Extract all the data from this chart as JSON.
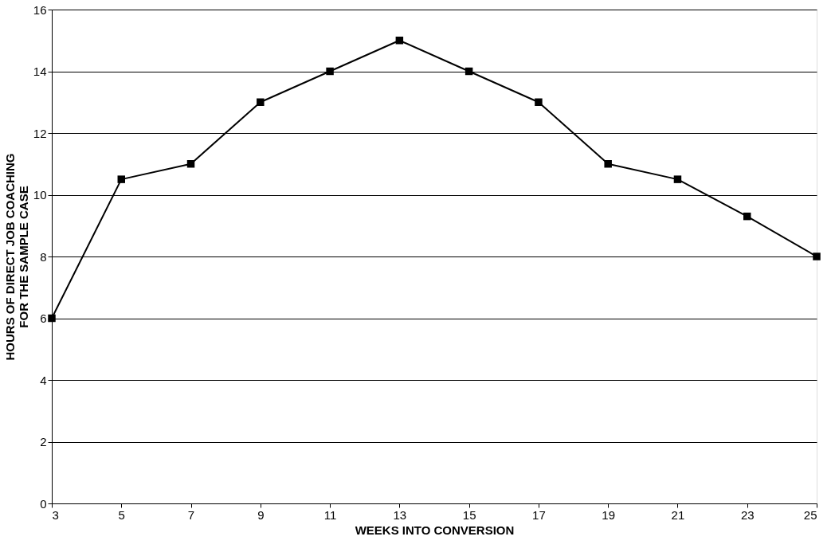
{
  "chart_data": {
    "type": "line",
    "xlabel": "WEEKS INTO CONVERSION",
    "ylabel": "HOURS OF DIRECT JOB COACHING\nFOR THE SAMPLE CASE",
    "x": [
      3,
      5,
      7,
      9,
      11,
      13,
      15,
      17,
      19,
      21,
      23,
      25
    ],
    "series": [
      {
        "color": "#000000",
        "values": [
          6,
          10.5,
          11,
          13,
          14,
          15,
          14,
          13,
          11,
          10.5,
          9.3,
          8
        ]
      }
    ],
    "xlim": [
      3,
      25
    ],
    "xticks": [
      3,
      5,
      7,
      9,
      11,
      13,
      15,
      17,
      19,
      21,
      23,
      25
    ],
    "ylim": [
      0,
      16
    ],
    "yticks": [
      0,
      2,
      4,
      6,
      8,
      10,
      12,
      14,
      16
    ],
    "grid": "y",
    "marker": "square",
    "line_style": "solid"
  }
}
